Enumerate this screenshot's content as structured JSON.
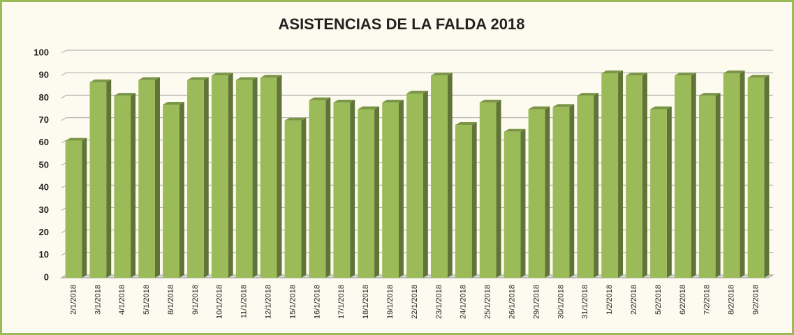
{
  "chart_data": {
    "type": "bar",
    "title": "ASISTENCIAS DE LA FALDA 2018",
    "categories": [
      "2/1/2018",
      "3/1/2018",
      "4/1/2018",
      "5/1/2018",
      "8/1/2018",
      "9/1/2018",
      "10/1/2018",
      "11/1/2018",
      "12/1/2018",
      "15/1/2018",
      "16/1/2018",
      "17/1/2018",
      "18/1/2018",
      "19/1/2018",
      "22/1/2018",
      "23/1/2018",
      "24/1/2018",
      "25/1/2018",
      "26/1/2018",
      "29/1/2018",
      "30/1/2018",
      "31/1/2018",
      "1/2/2018",
      "2/2/2018",
      "5/2/2018",
      "6/2/2018",
      "7/2/2018",
      "8/2/2018",
      "9/2/2018"
    ],
    "values": [
      61,
      87,
      81,
      88,
      77,
      88,
      90,
      88,
      89,
      70,
      79,
      78,
      75,
      78,
      82,
      90,
      68,
      78,
      65,
      75,
      76,
      81,
      91,
      90,
      75,
      90,
      81,
      91,
      89
    ],
    "color": "#9bbb59",
    "ylim": [
      0,
      100
    ],
    "yticks": [
      0,
      10,
      20,
      30,
      40,
      50,
      60,
      70,
      80,
      90,
      100
    ],
    "grid": true
  }
}
